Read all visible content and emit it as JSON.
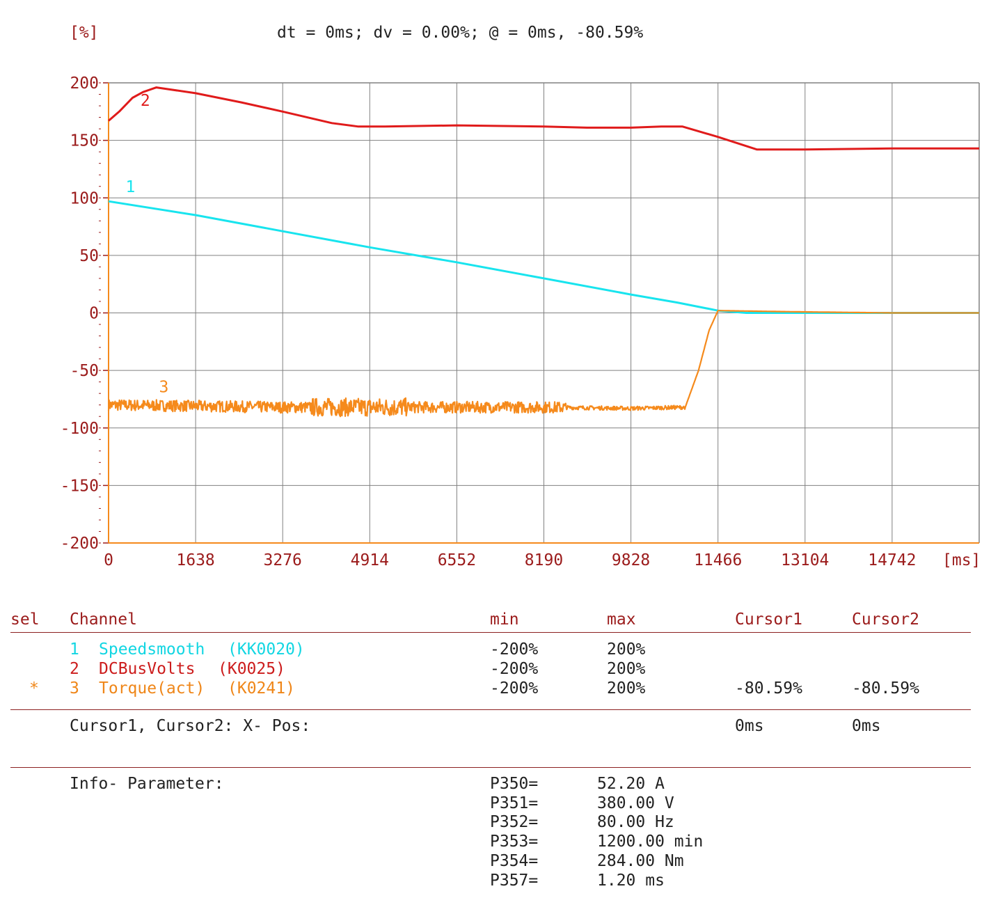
{
  "header": {
    "unit_label": "[%]",
    "readout": "dt = 0ms; dv = 0.00%; @ = 0ms, -80.59%"
  },
  "colors": {
    "speedsmooth": "#18e4ee",
    "dcbusvolts": "#e01b1b",
    "torque": "#f58a1c",
    "axis_text": "#9b1b1b",
    "grid": "#808080"
  },
  "chart_data": {
    "type": "line",
    "title": "",
    "xlabel": "[ms]",
    "ylabel": "[%]",
    "xlim": [
      0,
      16380
    ],
    "ylim": [
      -200,
      200
    ],
    "x_ticks": [
      "0",
      "1638",
      "3276",
      "4914",
      "6552",
      "8190",
      "9828",
      "11466",
      "13104",
      "14742"
    ],
    "y_ticks": [
      "200",
      "150",
      "100",
      "50",
      "0",
      "-50",
      "-100",
      "-150",
      "-200"
    ],
    "grid": true,
    "series": [
      {
        "name": "1",
        "color_key": "speedsmooth",
        "x": [
          0,
          1638,
          3276,
          4914,
          6552,
          8190,
          9828,
          10700,
          11466,
          12000,
          12900,
          14742,
          16380
        ],
        "y": [
          97,
          85,
          71,
          57,
          44,
          30,
          16,
          9,
          2,
          0,
          0,
          0,
          0
        ]
      },
      {
        "name": "2",
        "color_key": "dcbusvolts",
        "x": [
          0,
          200,
          450,
          650,
          900,
          1638,
          2500,
          3276,
          4200,
          4700,
          5200,
          6552,
          8190,
          9000,
          9828,
          10400,
          10800,
          11466,
          12200,
          13104,
          14742,
          16380
        ],
        "y": [
          167,
          175,
          187,
          192,
          196,
          191,
          183,
          175,
          165,
          162,
          162,
          163,
          162,
          161,
          161,
          162,
          162,
          153,
          142,
          142,
          143,
          143
        ]
      },
      {
        "name": "3",
        "color_key": "torque",
        "x": [
          0,
          1638,
          3276,
          4914,
          6552,
          8190,
          9828,
          10850,
          11100,
          11300,
          11466,
          12900,
          14742,
          16380
        ],
        "y": [
          -80,
          -81,
          -82,
          -82,
          -82,
          -82,
          -83,
          -82,
          -50,
          -15,
          2,
          1,
          0,
          0
        ],
        "noise_until_x": 10850,
        "noise_amplitude": 5
      }
    ],
    "series_labels": [
      "1",
      "2",
      "3"
    ]
  },
  "table": {
    "headers": {
      "sel": "sel",
      "channel": "Channel",
      "min": "min",
      "max": "max",
      "cursor1": "Cursor1",
      "cursor2": "Cursor2"
    },
    "rows": [
      {
        "sel": "",
        "num": "1",
        "name": "Speedsmooth",
        "code": "(KK0020)",
        "min": "-200%",
        "max": "200%",
        "cursor1": "",
        "cursor2": ""
      },
      {
        "sel": "",
        "num": "2",
        "name": "DCBusVolts",
        "code": "(K0025)",
        "min": "-200%",
        "max": "200%",
        "cursor1": "",
        "cursor2": ""
      },
      {
        "sel": "*",
        "num": "3",
        "name": "Torque(act)",
        "code": "(K0241)",
        "min": "-200%",
        "max": "200%",
        "cursor1": "-80.59%",
        "cursor2": "-80.59%"
      }
    ],
    "cursor_pos": {
      "label": "Cursor1, Cursor2: X- Pos:",
      "cursor1": "0ms",
      "cursor2": "0ms"
    },
    "info": {
      "label": "Info- Parameter:",
      "params": [
        {
          "name": "P350=",
          "value": "52.20 A"
        },
        {
          "name": "P351=",
          "value": "380.00 V"
        },
        {
          "name": "P352=",
          "value": "80.00 Hz"
        },
        {
          "name": "P353=",
          "value": "1200.00 min"
        },
        {
          "name": "P354=",
          "value": "284.00 Nm"
        },
        {
          "name": "P357=",
          "value": "1.20 ms"
        }
      ]
    }
  }
}
